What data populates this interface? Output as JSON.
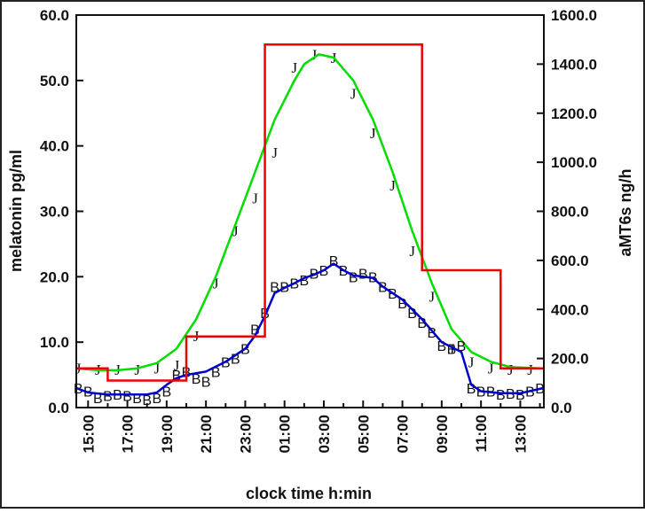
{
  "chart_data": {
    "type": "line",
    "xlabel": "clock time h:min",
    "ylabel_left": "melatonin pg/ml",
    "ylabel_right": "aMT6s ng/h",
    "x_tick_labels": [
      "15:00",
      "17:00",
      "19:00",
      "21:00",
      "23:00",
      "01:00",
      "03:00",
      "05:00",
      "07:00",
      "09:00",
      "11:00",
      "13:00"
    ],
    "x_range_hours_from_15": [
      -0.6,
      23.2
    ],
    "y_left_ticks": [
      "0.0",
      "10.0",
      "20.0",
      "30.0",
      "40.0",
      "50.0",
      "60.0"
    ],
    "y_left_range": [
      0,
      60
    ],
    "y_right_ticks": [
      "0.0",
      "200.0",
      "400.0",
      "600.0",
      "800.0",
      "1000.0",
      "1200.0",
      "1400.0",
      "1600.0"
    ],
    "y_right_range": [
      0,
      1600
    ],
    "grid": false,
    "legend": "none",
    "series": [
      {
        "color": "#00dd00",
        "marker": "J",
        "marker_text": "J",
        "axis": "left",
        "points": [
          [
            -0.5,
            6.0
          ],
          [
            0.5,
            5.8
          ],
          [
            1.5,
            5.8
          ],
          [
            2.5,
            5.8
          ],
          [
            3.5,
            6.0
          ],
          [
            4.5,
            6.5
          ],
          [
            5.5,
            11.0
          ],
          [
            6.5,
            19.0
          ],
          [
            7.5,
            27.0
          ],
          [
            8.5,
            32.0
          ],
          [
            9.5,
            39.0
          ],
          [
            10.5,
            52.0
          ],
          [
            11.5,
            54.0
          ],
          [
            12.5,
            53.5
          ],
          [
            13.5,
            48.0
          ],
          [
            14.5,
            42.0
          ],
          [
            15.5,
            34.0
          ],
          [
            16.5,
            24.0
          ],
          [
            17.5,
            17.0
          ],
          [
            18.5,
            9.0
          ],
          [
            19.5,
            7.0
          ],
          [
            20.5,
            6.0
          ],
          [
            21.5,
            5.8
          ],
          [
            22.5,
            5.8
          ]
        ],
        "fit": [
          [
            -0.6,
            6.0
          ],
          [
            0.5,
            5.7
          ],
          [
            1.5,
            5.7
          ],
          [
            2.5,
            6.0
          ],
          [
            3.5,
            6.8
          ],
          [
            4.5,
            9.0
          ],
          [
            5.5,
            13.5
          ],
          [
            6.5,
            20.0
          ],
          [
            7.5,
            28.0
          ],
          [
            8.5,
            36.0
          ],
          [
            9.5,
            44.0
          ],
          [
            10.5,
            50.0
          ],
          [
            11.0,
            52.5
          ],
          [
            11.75,
            54.0
          ],
          [
            12.5,
            53.5
          ],
          [
            13.5,
            50.0
          ],
          [
            14.5,
            44.0
          ],
          [
            15.5,
            36.0
          ],
          [
            16.5,
            27.0
          ],
          [
            17.5,
            19.0
          ],
          [
            18.5,
            12.0
          ],
          [
            19.5,
            8.5
          ],
          [
            20.5,
            7.0
          ],
          [
            21.5,
            6.2
          ],
          [
            23.0,
            6.0
          ]
        ]
      },
      {
        "color": "#0000cc",
        "marker": "B",
        "marker_text": "B",
        "axis": "left",
        "points": [
          [
            -0.5,
            3.0
          ],
          [
            0.0,
            2.5
          ],
          [
            0.5,
            1.5
          ],
          [
            1.0,
            1.8
          ],
          [
            1.5,
            2.0
          ],
          [
            2.0,
            1.8
          ],
          [
            2.5,
            1.5
          ],
          [
            3.0,
            1.2
          ],
          [
            3.5,
            1.5
          ],
          [
            4.0,
            2.5
          ],
          [
            4.5,
            5.0
          ],
          [
            5.0,
            5.5
          ],
          [
            5.5,
            4.5
          ],
          [
            6.0,
            4.0
          ],
          [
            6.5,
            5.5
          ],
          [
            7.0,
            7.0
          ],
          [
            7.5,
            7.5
          ],
          [
            8.0,
            9.0
          ],
          [
            8.5,
            12.0
          ],
          [
            9.0,
            14.5
          ],
          [
            9.5,
            18.5
          ],
          [
            10.0,
            18.5
          ],
          [
            10.5,
            19.0
          ],
          [
            11.0,
            19.5
          ],
          [
            11.5,
            20.5
          ],
          [
            12.0,
            21.0
          ],
          [
            12.5,
            22.5
          ],
          [
            13.0,
            21.0
          ],
          [
            13.5,
            20.0
          ],
          [
            14.0,
            20.5
          ],
          [
            14.5,
            20.0
          ],
          [
            15.0,
            18.5
          ],
          [
            15.5,
            17.5
          ],
          [
            16.0,
            16.0
          ],
          [
            16.5,
            14.5
          ],
          [
            17.0,
            13.0
          ],
          [
            17.5,
            11.5
          ],
          [
            18.0,
            9.5
          ],
          [
            18.5,
            9.0
          ],
          [
            19.0,
            9.5
          ],
          [
            19.5,
            3.0
          ],
          [
            20.0,
            2.5
          ],
          [
            20.5,
            2.5
          ],
          [
            21.0,
            2.0
          ],
          [
            21.5,
            2.2
          ],
          [
            22.0,
            2.0
          ],
          [
            22.5,
            2.5
          ],
          [
            23.0,
            3.0
          ]
        ],
        "fit": [
          [
            -0.6,
            3.0
          ],
          [
            0.0,
            2.3
          ],
          [
            1.0,
            2.0
          ],
          [
            2.0,
            2.0
          ],
          [
            3.0,
            2.0
          ],
          [
            3.5,
            2.3
          ],
          [
            4.0,
            3.5
          ],
          [
            4.5,
            4.5
          ],
          [
            5.0,
            5.0
          ],
          [
            6.0,
            5.5
          ],
          [
            7.0,
            7.0
          ],
          [
            8.0,
            9.0
          ],
          [
            8.5,
            11.0
          ],
          [
            9.0,
            14.0
          ],
          [
            9.5,
            17.5
          ],
          [
            10.0,
            18.3
          ],
          [
            10.5,
            19.0
          ],
          [
            11.0,
            19.8
          ],
          [
            11.5,
            20.3
          ],
          [
            12.0,
            21.0
          ],
          [
            12.5,
            22.0
          ],
          [
            13.0,
            21.0
          ],
          [
            13.5,
            20.2
          ],
          [
            14.0,
            20.0
          ],
          [
            14.5,
            19.8
          ],
          [
            15.0,
            18.5
          ],
          [
            16.0,
            16.5
          ],
          [
            17.0,
            13.5
          ],
          [
            18.0,
            10.0
          ],
          [
            19.0,
            8.5
          ],
          [
            19.5,
            3.5
          ],
          [
            20.0,
            2.5
          ],
          [
            21.0,
            2.2
          ],
          [
            22.0,
            2.2
          ],
          [
            23.2,
            3.0
          ]
        ]
      },
      {
        "color": "#ee0000",
        "type": "step",
        "axis": "right",
        "steps": [
          [
            -0.6,
            1.0,
            160
          ],
          [
            1.0,
            5.0,
            110
          ],
          [
            5.0,
            9.0,
            290
          ],
          [
            9.0,
            17.0,
            1480
          ],
          [
            17.0,
            21.0,
            560
          ],
          [
            21.0,
            23.2,
            160
          ]
        ]
      }
    ]
  }
}
